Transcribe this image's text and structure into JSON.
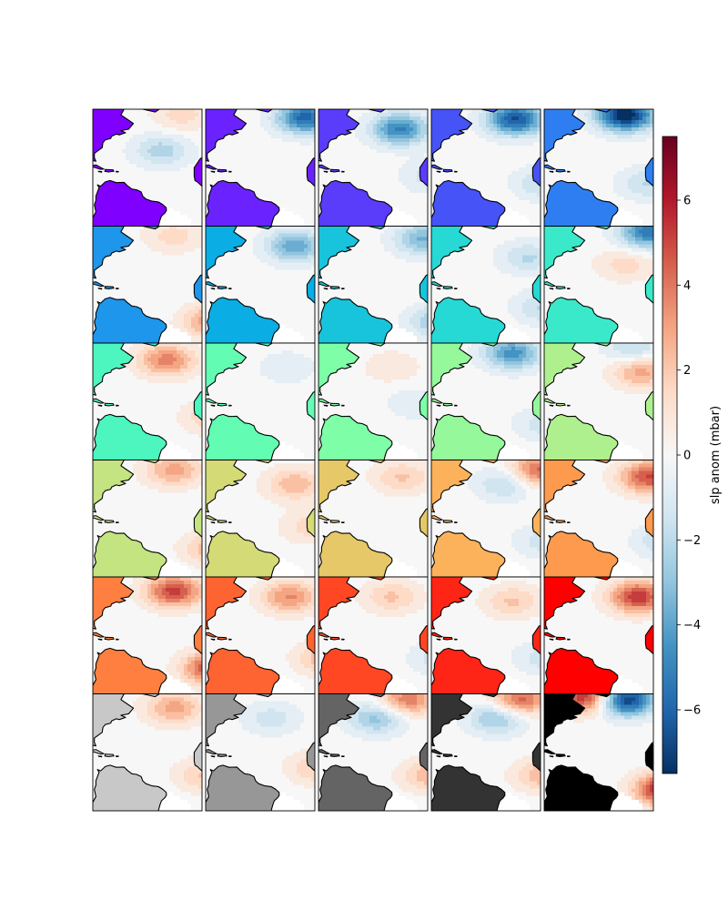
{
  "chart_data": {
    "type": "heatmap",
    "title": "",
    "layout": {
      "rows": 6,
      "cols": 5
    },
    "colorbar": {
      "label": "slp anom (mbar)",
      "colormap": "RdBu_r",
      "range": [
        -7.5,
        7.5
      ],
      "ticks": [
        -6,
        -4,
        -2,
        0,
        2,
        4,
        6
      ],
      "tick_labels": [
        "−6",
        "−4",
        "−2",
        "0",
        "2",
        "4",
        "6"
      ]
    },
    "panels": [
      {
        "land": "#8000ff",
        "blobs": [
          {
            "lon": -38,
            "lat": 33,
            "amp": -2.3
          },
          {
            "lon": -25,
            "lat": 58,
            "amp": 1.5
          }
        ]
      },
      {
        "land": "#6a23fe",
        "blobs": [
          {
            "lon": -18,
            "lat": 56,
            "amp": -6.0
          }
        ]
      },
      {
        "land": "#5a3cfb",
        "blobs": [
          {
            "lon": -30,
            "lat": 48,
            "amp": -5.0
          },
          {
            "lon": -10,
            "lat": 15,
            "amp": -1.5
          }
        ]
      },
      {
        "land": "#4653f6",
        "blobs": [
          {
            "lon": -28,
            "lat": 55,
            "amp": -6.5
          },
          {
            "lon": -10,
            "lat": 10,
            "amp": -2.0
          }
        ]
      },
      {
        "land": "#2f7ef1",
        "blobs": [
          {
            "lon": -30,
            "lat": 58,
            "amp": -8.0
          },
          {
            "lon": -15,
            "lat": 10,
            "amp": -2.0
          }
        ]
      },
      {
        "land": "#1e96eb",
        "blobs": [
          {
            "lon": -30,
            "lat": 55,
            "amp": 1.5
          },
          {
            "lon": -5,
            "lat": -5,
            "amp": 3.5
          }
        ]
      },
      {
        "land": "#0aade4",
        "blobs": [
          {
            "lon": -25,
            "lat": 48,
            "amp": -4.0
          }
        ]
      },
      {
        "land": "#18c4dc",
        "blobs": [
          {
            "lon": -15,
            "lat": 53,
            "amp": -3.5
          },
          {
            "lon": -5,
            "lat": -5,
            "amp": -3.0
          }
        ]
      },
      {
        "land": "#26d9d4",
        "blobs": [
          {
            "lon": -20,
            "lat": 40,
            "amp": -2.0
          },
          {
            "lon": -10,
            "lat": 5,
            "amp": -2.0
          }
        ]
      },
      {
        "land": "#3ae9c9",
        "blobs": [
          {
            "lon": -15,
            "lat": 58,
            "amp": -5.5
          },
          {
            "lon": -30,
            "lat": 35,
            "amp": 1.5
          }
        ]
      },
      {
        "land": "#4cf6be",
        "blobs": [
          {
            "lon": -35,
            "lat": 50,
            "amp": 3.8
          },
          {
            "lon": -5,
            "lat": 10,
            "amp": 2.0
          }
        ]
      },
      {
        "land": "#62fdb2",
        "blobs": [
          {
            "lon": -30,
            "lat": 45,
            "amp": -1.0
          }
        ]
      },
      {
        "land": "#7dfea7",
        "blobs": [
          {
            "lon": -35,
            "lat": 45,
            "amp": 1.0
          },
          {
            "lon": -20,
            "lat": 20,
            "amp": -1.0
          }
        ]
      },
      {
        "land": "#95f89a",
        "blobs": [
          {
            "lon": -30,
            "lat": 55,
            "amp": -4.5
          },
          {
            "lon": -10,
            "lat": 5,
            "amp": -1.5
          }
        ]
      },
      {
        "land": "#aef08e",
        "blobs": [
          {
            "lon": -20,
            "lat": 42,
            "amp": 3.0
          },
          {
            "lon": -25,
            "lat": 58,
            "amp": -2.0
          }
        ]
      },
      {
        "land": "#c4e381",
        "blobs": [
          {
            "lon": -30,
            "lat": 55,
            "amp": 3.0
          },
          {
            "lon": -5,
            "lat": 0,
            "amp": 2.5
          }
        ]
      },
      {
        "land": "#d4da75",
        "blobs": [
          {
            "lon": -25,
            "lat": 45,
            "amp": 2.5
          },
          {
            "lon": -15,
            "lat": 15,
            "amp": 1.5
          }
        ]
      },
      {
        "land": "#e6c868",
        "blobs": [
          {
            "lon": -28,
            "lat": 50,
            "amp": 2.0
          }
        ]
      },
      {
        "land": "#fbb25b",
        "blobs": [
          {
            "lon": -12,
            "lat": 55,
            "amp": 4.5
          },
          {
            "lon": -35,
            "lat": 45,
            "amp": -2.0
          },
          {
            "lon": -10,
            "lat": 5,
            "amp": -1.5
          }
        ]
      },
      {
        "land": "#fd9a4e",
        "blobs": [
          {
            "lon": -15,
            "lat": 50,
            "amp": 5.0
          },
          {
            "lon": -5,
            "lat": 5,
            "amp": -2.0
          }
        ]
      },
      {
        "land": "#fe7f40",
        "blobs": [
          {
            "lon": -30,
            "lat": 52,
            "amp": 5.2
          },
          {
            "lon": -5,
            "lat": -2,
            "amp": 5.5
          }
        ]
      },
      {
        "land": "#fe6332",
        "blobs": [
          {
            "lon": -28,
            "lat": 48,
            "amp": 3.5
          },
          {
            "lon": -5,
            "lat": 5,
            "amp": 2.5
          }
        ]
      },
      {
        "land": "#ff4724",
        "blobs": [
          {
            "lon": -35,
            "lat": 48,
            "amp": 2.0
          },
          {
            "lon": -5,
            "lat": 5,
            "amp": -1.5
          }
        ]
      },
      {
        "land": "#ff2516",
        "blobs": [
          {
            "lon": -30,
            "lat": 45,
            "amp": 2.0
          },
          {
            "lon": -10,
            "lat": 5,
            "amp": -1.5
          }
        ]
      },
      {
        "land": "#ff0000",
        "blobs": [
          {
            "lon": -22,
            "lat": 48,
            "amp": 5.5
          }
        ]
      },
      {
        "land": "#c8c8c8",
        "blobs": [
          {
            "lon": -30,
            "lat": 52,
            "amp": 3.0
          },
          {
            "lon": -10,
            "lat": 5,
            "amp": 2.0
          }
        ]
      },
      {
        "land": "#979797",
        "blobs": [
          {
            "lon": -40,
            "lat": 45,
            "amp": -1.5
          },
          {
            "lon": -10,
            "lat": 10,
            "amp": 2.0
          }
        ]
      },
      {
        "land": "#646464",
        "blobs": [
          {
            "lon": -25,
            "lat": 58,
            "amp": 4.0
          },
          {
            "lon": -45,
            "lat": 45,
            "amp": -3.0
          },
          {
            "lon": -10,
            "lat": 5,
            "amp": 2.5
          }
        ]
      },
      {
        "land": "#333333",
        "blobs": [
          {
            "lon": -25,
            "lat": 58,
            "amp": 4.5
          },
          {
            "lon": -40,
            "lat": 45,
            "amp": -3.0
          },
          {
            "lon": -10,
            "lat": 5,
            "amp": 2.5
          }
        ]
      },
      {
        "land": "#000000",
        "blobs": [
          {
            "lon": -30,
            "lat": 58,
            "amp": -7.5
          },
          {
            "lon": -55,
            "lat": 60,
            "amp": 6.0
          },
          {
            "lon": -5,
            "lat": -5,
            "amp": 6.5
          }
        ]
      }
    ]
  }
}
